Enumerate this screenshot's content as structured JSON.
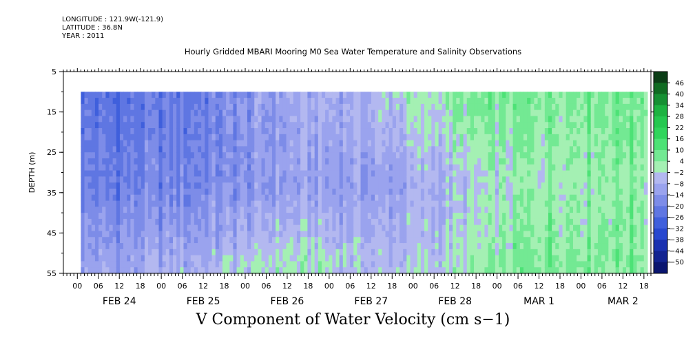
{
  "header": {
    "longitude": "LONGITUDE : 121.9W(-121.9)",
    "latitude": "LATITUDE : 36.8N",
    "year": "YEAR : 2011",
    "title": "Hourly Gridded MBARI Mooring M0 Sea Water Temperature and Salinity Observations"
  },
  "chart_data": {
    "type": "heatmap",
    "title": "Hourly Gridded MBARI Mooring M0 Sea Water Temperature and Salinity Observations",
    "bottom_title": "V Component of Water Velocity (cm s−1)",
    "ylabel": "DEPTH (m)",
    "ylim": [
      55,
      5
    ],
    "yticks": [
      "5",
      "15",
      "25",
      "35",
      "45",
      "55"
    ],
    "x_hour_ticks": [
      "00",
      "06",
      "12",
      "18",
      "00",
      "06",
      "12",
      "18",
      "00",
      "06",
      "12",
      "18",
      "00",
      "06",
      "12",
      "18",
      "00",
      "06",
      "12",
      "18",
      "00",
      "06",
      "12",
      "18",
      "00",
      "06",
      "12",
      "18"
    ],
    "x_day_labels": [
      "FEB 24",
      "FEB 25",
      "FEB 26",
      "FEB 27",
      "FEB 28",
      "MAR  1",
      "MAR  2"
    ],
    "x_range_hours": [
      -4,
      164
    ],
    "data_x_start_hour": 1,
    "data_depth_range": [
      10,
      55
    ],
    "colorbar_levels": [
      "46",
      "40",
      "34",
      "28",
      "22",
      "16",
      "10",
      "4",
      "−2",
      "−8",
      "−14",
      "−20",
      "−26",
      "−32",
      "−38",
      "−44",
      "−50"
    ],
    "colorbar_scale": [
      "#0b3d16",
      "#106b22",
      "#169033",
      "#1db341",
      "#25c84f",
      "#31d55c",
      "#4de276",
      "#73e993",
      "#a4f0b3",
      "#b3b8f0",
      "#9aa3ee",
      "#7d8ce8",
      "#5f76e2",
      "#3f5fdc",
      "#2747cf",
      "#1a31b0",
      "#122391",
      "#0a1570"
    ],
    "columns": [
      {
        "day": "FEB 24",
        "hour_range": [
          1,
          24
        ],
        "surface": -24,
        "mid": -20,
        "bottom": -10
      },
      {
        "day": "FEB 25",
        "hour_range": [
          24,
          48
        ],
        "surface": -20,
        "mid": -18,
        "bottom": -6
      },
      {
        "day": "FEB 26",
        "hour_range": [
          48,
          72
        ],
        "surface": -10,
        "mid": -12,
        "bottom": 2
      },
      {
        "day": "FEB 27",
        "hour_range": [
          72,
          96
        ],
        "surface": -6,
        "mid": -12,
        "bottom": -4
      },
      {
        "day": "FEB 28",
        "hour_range": [
          96,
          120
        ],
        "surface": 4,
        "mid": -6,
        "bottom": -2
      },
      {
        "day": "MAR  1",
        "hour_range": [
          120,
          144
        ],
        "surface": 6,
        "mid": 2,
        "bottom": 8
      },
      {
        "day": "MAR  2",
        "hour_range": [
          144,
          163
        ],
        "surface": 8,
        "mid": 4,
        "bottom": 6
      }
    ]
  }
}
